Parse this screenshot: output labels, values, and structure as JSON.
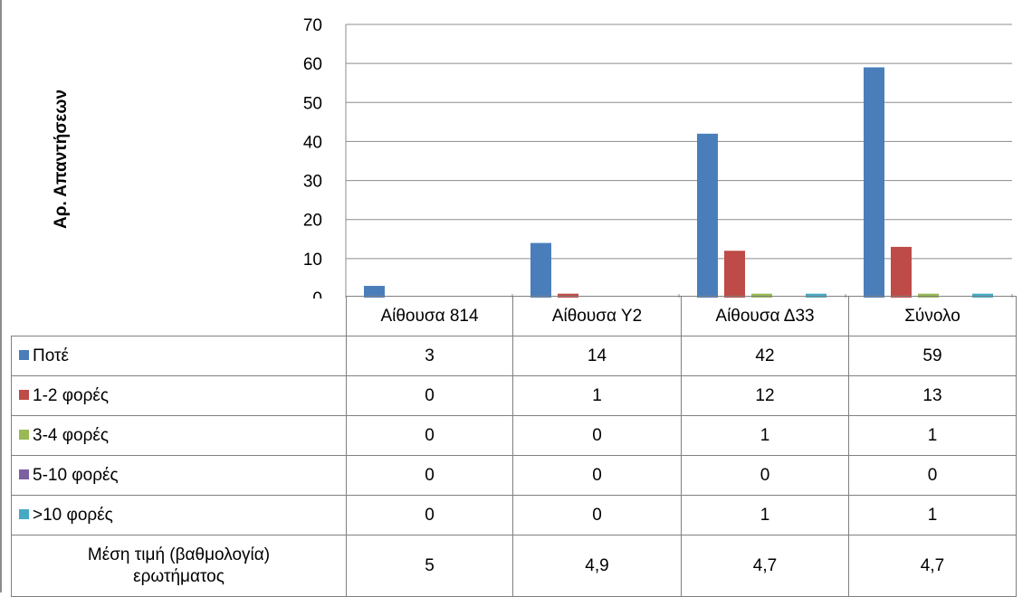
{
  "chart_data": {
    "type": "bar",
    "ylabel": "Αρ. Απαντήσεων",
    "ylim": [
      0,
      70
    ],
    "yticks": [
      "0",
      "10",
      "20",
      "30",
      "40",
      "50",
      "60",
      "70"
    ],
    "grid": true,
    "legend": "data-table",
    "categories": [
      "Αίθουσα 814",
      "Αίθουσα Υ2",
      "Αίθουσα Δ33",
      "Σύνολο"
    ],
    "series": [
      {
        "name": "Ποτέ",
        "color": "#4a7ebb",
        "values": [
          3,
          14,
          42,
          59
        ],
        "labels": [
          "3",
          "14",
          "42",
          "59"
        ]
      },
      {
        "name": "1-2 φορές",
        "color": "#be4b48",
        "values": [
          0,
          1,
          12,
          13
        ],
        "labels": [
          "0",
          "1",
          "12",
          "13"
        ]
      },
      {
        "name": "3-4 φορές",
        "color": "#98b954",
        "values": [
          0,
          0,
          1,
          1
        ],
        "labels": [
          "0",
          "0",
          "1",
          "1"
        ]
      },
      {
        "name": "5-10 φορές",
        "color": "#7d60a0",
        "values": [
          0,
          0,
          0,
          0
        ],
        "labels": [
          "0",
          "0",
          "0",
          "0"
        ]
      },
      {
        "name": ">10 φορές",
        "color": "#46aac5",
        "values": [
          0,
          0,
          1,
          1
        ],
        "labels": [
          "0",
          "0",
          "1",
          "1"
        ]
      }
    ],
    "summary_row": {
      "label_line1": "Μέση τιμή (βαθμολογία)",
      "label_line2": "ερωτήματος",
      "values": [
        "5",
        "4,9",
        "4,7",
        "4,7"
      ]
    }
  }
}
